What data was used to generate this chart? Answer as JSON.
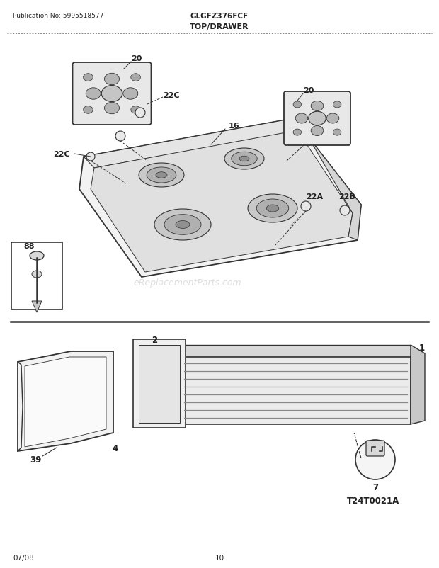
{
  "pub_no": "Publication No: 5995518577",
  "model": "GLGFZ376FCF",
  "section": "TOP/DRAWER",
  "watermark": "eReplacementParts.com",
  "date": "07/08",
  "page": "10",
  "diagram_id": "T24T0021A",
  "bg_color": "#ffffff",
  "line_color": "#333333",
  "text_color": "#222222",
  "watermark_color": "#cccccc",
  "labels": {
    "top_left_burner": "20",
    "top_right_burner": "20",
    "grate_label_top": "22C",
    "grate_label_bottom": "22C",
    "cap_top_22A": "22A",
    "cap_top_22B": "22B",
    "cooktop": "16",
    "part_88": "88",
    "drawer_body": "1",
    "drawer_frame": "2",
    "drawer_front": "39",
    "drawer_bottom_front": "4",
    "drawer_clip": "7",
    "diagram_ref": "T24T0021A"
  }
}
